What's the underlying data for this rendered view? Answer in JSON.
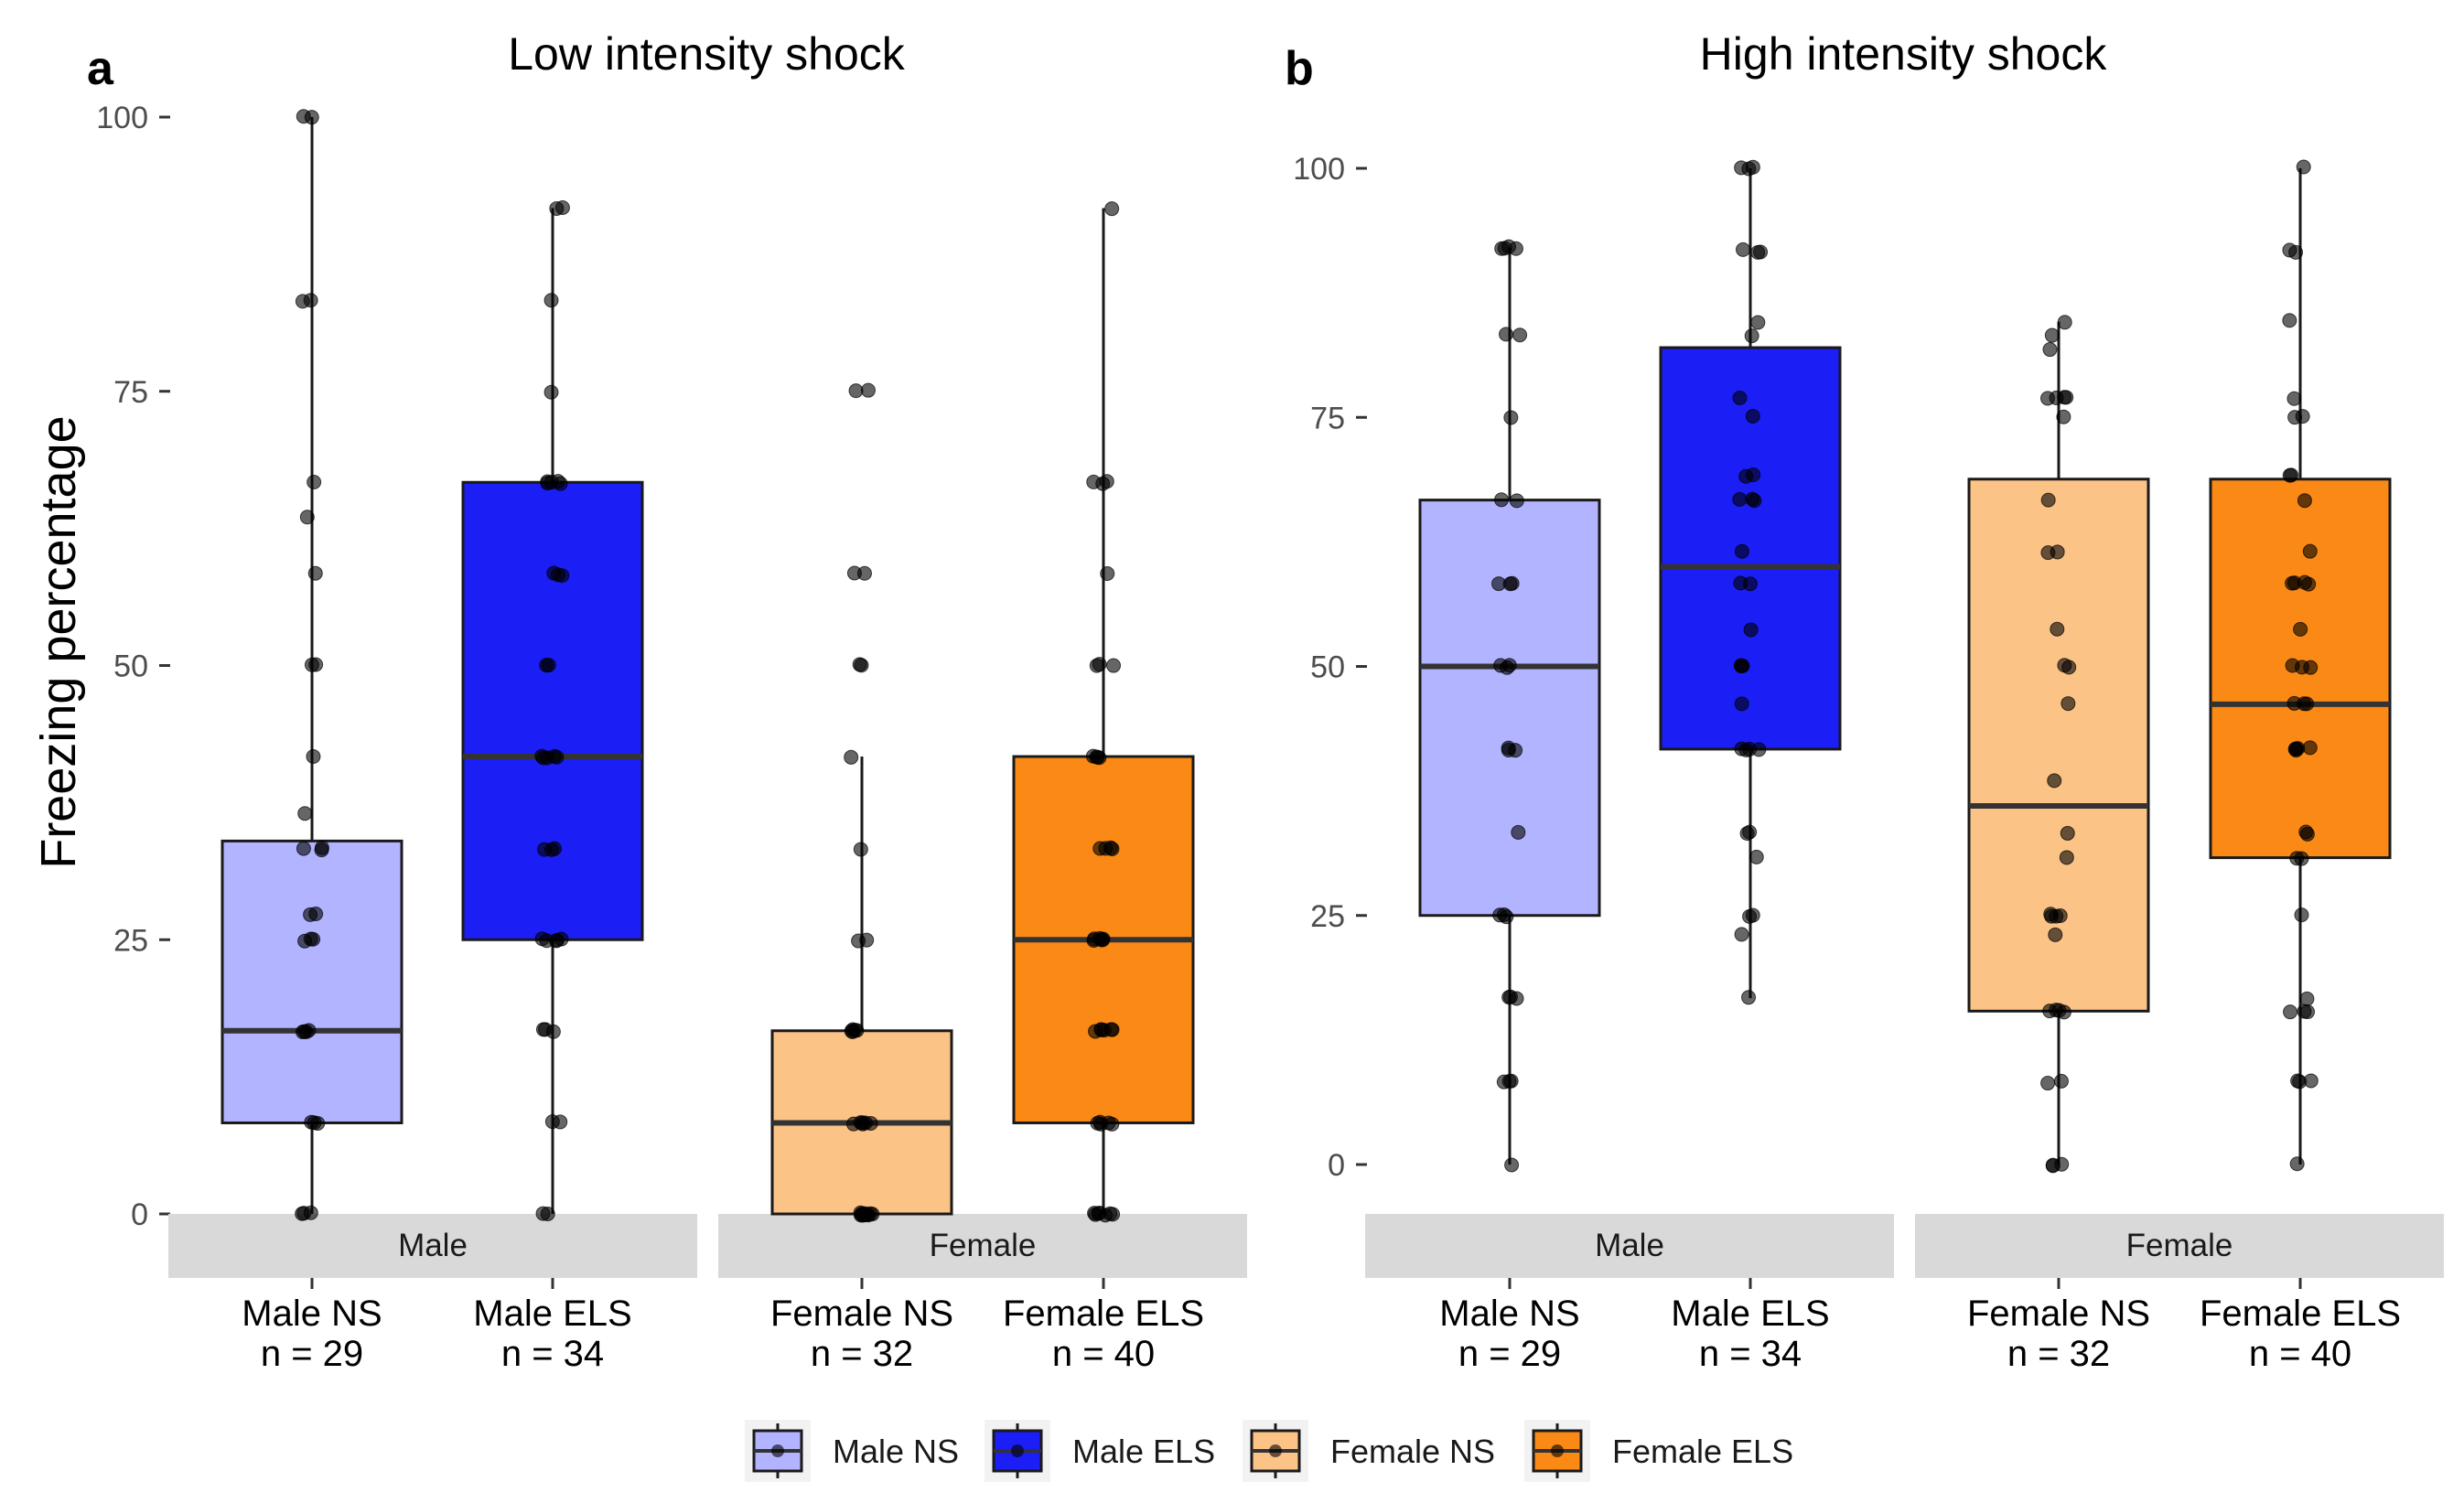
{
  "y_axis_label": "Freezing percentage",
  "colors": {
    "Male NS": "#b2b4ff",
    "Male ELS": "#1b1ef5",
    "Female NS": "#fcc387",
    "Female ELS": "#fb8916",
    "strip": "#d9d9d9",
    "point": "#000000"
  },
  "legend": {
    "position": "bottom",
    "items": [
      {
        "label": "Male NS",
        "color_key": "Male NS"
      },
      {
        "label": "Male ELS",
        "color_key": "Male ELS"
      },
      {
        "label": "Female NS",
        "color_key": "Female NS"
      },
      {
        "label": "Female ELS",
        "color_key": "Female ELS"
      }
    ]
  },
  "chart_data": [
    {
      "type": "box",
      "panel_letter": "a",
      "title": "Low intensity shock",
      "ylabel": "Freezing percentage",
      "ylim": [
        0,
        100
      ],
      "yticks": [
        0,
        25,
        50,
        75,
        100
      ],
      "grid": false,
      "facets": [
        {
          "label": "Male",
          "groups": [
            {
              "name": "Male NS",
              "line1": "Male NS",
              "line2": "n = 29",
              "box": {
                "lower_whisker": 0,
                "q1": 8.3,
                "median": 16.7,
                "q3": 34.0,
                "upper_whisker": 100
              },
              "points": [
                100,
                100,
                83.3,
                83.3,
                66.7,
                63.6,
                58.3,
                50,
                50,
                41.7,
                36.4,
                33.3,
                33.3,
                33.3,
                27.3,
                27.3,
                25,
                25,
                25,
                16.7,
                16.7,
                16.7,
                16.7,
                8.3,
                8.3,
                8.3,
                0,
                0,
                0
              ]
            },
            {
              "name": "Male ELS",
              "line1": "Male ELS",
              "line2": "n = 34",
              "box": {
                "lower_whisker": 0,
                "q1": 25,
                "median": 41.7,
                "q3": 66.7,
                "upper_whisker": 91.7
              },
              "points": [
                91.7,
                91.7,
                83.3,
                75,
                66.7,
                66.7,
                66.7,
                66.7,
                66.7,
                58.3,
                58.3,
                58.3,
                50,
                50,
                41.7,
                41.7,
                41.7,
                41.7,
                41.7,
                33.3,
                33.3,
                33.3,
                25,
                25,
                25,
                25,
                25,
                16.7,
                16.7,
                16.7,
                8.3,
                8.3,
                0,
                0
              ]
            }
          ]
        },
        {
          "label": "Female",
          "groups": [
            {
              "name": "Female NS",
              "line1": "Female NS",
              "line2": "n = 32",
              "box": {
                "lower_whisker": 0,
                "q1": 0,
                "median": 8.3,
                "q3": 16.7,
                "upper_whisker": 41.7
              },
              "points": [
                75,
                75,
                58.3,
                58.3,
                50,
                50,
                41.7,
                33.3,
                25,
                25,
                16.7,
                16.7,
                16.7,
                16.7,
                16.7,
                8.3,
                8.3,
                8.3,
                8.3,
                8.3,
                8.3,
                0,
                0,
                0,
                0,
                0,
                0,
                0,
                0,
                0,
                0,
                0
              ]
            },
            {
              "name": "Female ELS",
              "line1": "Female ELS",
              "line2": "n = 40",
              "box": {
                "lower_whisker": 0,
                "q1": 8.3,
                "median": 25,
                "q3": 41.7,
                "upper_whisker": 91.7
              },
              "points": [
                91.7,
                66.7,
                66.7,
                66.7,
                58.3,
                50,
                50,
                50,
                41.7,
                41.7,
                41.7,
                41.7,
                33.3,
                33.3,
                33.3,
                33.3,
                25,
                25,
                25,
                25,
                25,
                25,
                16.7,
                16.7,
                16.7,
                16.7,
                16.7,
                16.7,
                8.3,
                8.3,
                8.3,
                8.3,
                8.3,
                0,
                0,
                0,
                0,
                0,
                0,
                0
              ]
            }
          ]
        }
      ]
    },
    {
      "type": "box",
      "panel_letter": "b",
      "title": "High intensity shock",
      "ylabel": "",
      "ylim": [
        0,
        100
      ],
      "yticks": [
        0,
        25,
        50,
        75,
        100
      ],
      "grid": false,
      "facets": [
        {
          "label": "Male",
          "groups": [
            {
              "name": "Male NS",
              "line1": "Male NS",
              "line2": "n = 29",
              "box": {
                "lower_whisker": 0,
                "q1": 25,
                "median": 50,
                "q3": 66.7,
                "upper_whisker": 92
              },
              "points": [
                92,
                92,
                92,
                83.3,
                83.3,
                75,
                66.7,
                66.7,
                58.3,
                58.3,
                50,
                50,
                41.7,
                41.7,
                41.7,
                33.3,
                25,
                25,
                25,
                16.7,
                16.7,
                16.7,
                8.3,
                8.3,
                8.3,
                0,
                50,
                58.3,
                92
              ]
            },
            {
              "name": "Male ELS",
              "line1": "Male ELS",
              "line2": "n = 34",
              "box": {
                "lower_whisker": 16.7,
                "q1": 41.7,
                "median": 60,
                "q3": 82,
                "upper_whisker": 100
              },
              "points": [
                100,
                100,
                100,
                91.7,
                91.7,
                91.7,
                84.6,
                83.3,
                76.9,
                75,
                69.2,
                69.2,
                66.7,
                66.7,
                66.7,
                61.5,
                58.3,
                58.3,
                53.8,
                50,
                50,
                50,
                46.2,
                41.7,
                41.7,
                41.7,
                41.7,
                33.3,
                33.3,
                30.8,
                25,
                25,
                23.1,
                16.7
              ]
            }
          ]
        },
        {
          "label": "Female",
          "groups": [
            {
              "name": "Female NS",
              "line1": "Female NS",
              "line2": "n = 32",
              "box": {
                "lower_whisker": 0,
                "q1": 15.4,
                "median": 36,
                "q3": 68.8,
                "upper_whisker": 84.6
              },
              "points": [
                84.6,
                83.3,
                81.8,
                76.9,
                76.9,
                76.9,
                75,
                66.7,
                61.5,
                61.5,
                53.8,
                50,
                50,
                46.2,
                38.5,
                33.3,
                30.8,
                25,
                25,
                25,
                23.1,
                15.4,
                15.4,
                15.4,
                8.3,
                8.3,
                0,
                0,
                0,
                76.9,
                25,
                15.4
              ]
            },
            {
              "name": "Female ELS",
              "line1": "Female ELS",
              "line2": "n = 40",
              "box": {
                "lower_whisker": 0,
                "q1": 30.8,
                "median": 46.2,
                "q3": 68.8,
                "upper_whisker": 100
              },
              "points": [
                100,
                91.7,
                91.7,
                84.6,
                76.9,
                75,
                75,
                69.2,
                69.2,
                66.7,
                61.5,
                58.3,
                58.3,
                58.3,
                53.8,
                50,
                50,
                46.2,
                46.2,
                46.2,
                41.7,
                41.7,
                41.7,
                41.7,
                33.3,
                33.3,
                30.8,
                30.8,
                25,
                16.7,
                15.4,
                15.4,
                15.4,
                8.3,
                8.3,
                8.3,
                0,
                58.3,
                50,
                41.7
              ]
            }
          ]
        }
      ]
    }
  ]
}
